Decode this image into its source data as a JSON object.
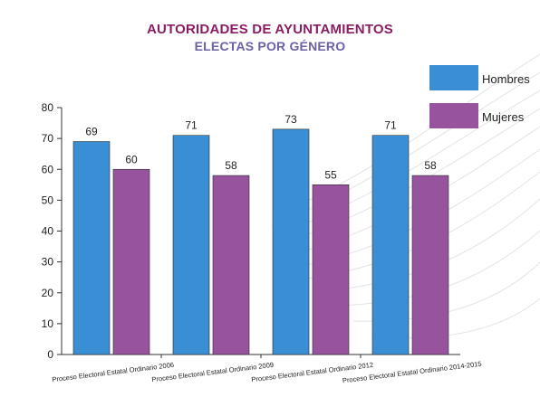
{
  "header": {
    "title_line1": "AUTORIDADES DE AYUNTAMIENTOS",
    "title_line2": "ELECTAS POR GÉNERO"
  },
  "colors": {
    "hombres": "#3a8fd4",
    "mujeres": "#98539f",
    "title1": "#8a1d63",
    "title2": "#6d5fa8"
  },
  "legend": {
    "position": "top-right",
    "items": [
      {
        "label": "Hombres",
        "color": "#3a8fd4"
      },
      {
        "label": "Mujeres",
        "color": "#98539f"
      }
    ]
  },
  "chart_data": {
    "type": "bar",
    "title": "AUTORIDADES DE AYUNTAMIENTOS ELECTAS POR GÉNERO",
    "xlabel": "",
    "ylabel": "",
    "categories": [
      "Proceso Electoral Estatal Ordinario 2006",
      "Proceso Electoral Estatal Ordinario 2009",
      "Proceso Electoral Estatal Ordinario 2012",
      "Proceso Electoral Estatal Ordinario 2014-2015"
    ],
    "series": [
      {
        "name": "Hombres",
        "values": [
          69,
          71,
          73,
          71
        ],
        "color": "#3a8fd4"
      },
      {
        "name": "Mujeres",
        "values": [
          60,
          58,
          55,
          58
        ],
        "color": "#98539f"
      }
    ],
    "ylim": [
      0,
      80
    ],
    "yticks": [
      0,
      10,
      20,
      30,
      40,
      50,
      60,
      70,
      80
    ],
    "grid": false,
    "data_labels": true
  }
}
